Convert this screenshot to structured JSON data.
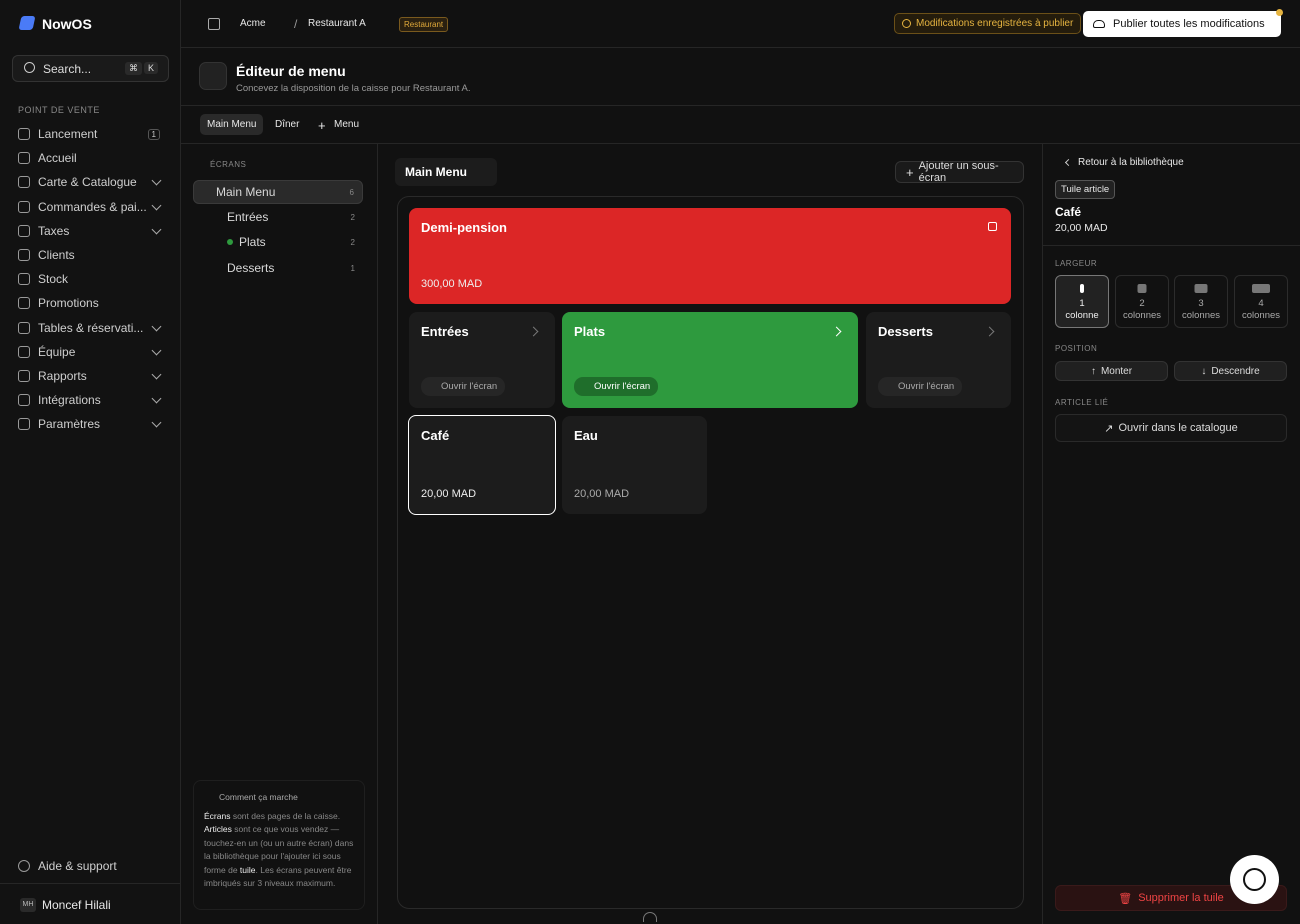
{
  "brand": "NowOS",
  "search": {
    "placeholder": "Search...",
    "keys": [
      "⌘",
      "K"
    ]
  },
  "nav": {
    "section": "POINT DE VENTE",
    "items": [
      {
        "label": "Lancement",
        "badge": "1"
      },
      {
        "label": "Accueil"
      },
      {
        "label": "Carte & Catalogue"
      },
      {
        "label": "Commandes & pai..."
      },
      {
        "label": "Taxes"
      },
      {
        "label": "Clients"
      },
      {
        "label": "Stock"
      },
      {
        "label": "Promotions"
      },
      {
        "label": "Tables & réservati..."
      },
      {
        "label": "Équipe"
      },
      {
        "label": "Rapports"
      },
      {
        "label": "Intégrations"
      },
      {
        "label": "Paramètres"
      }
    ],
    "support": "Aide & support",
    "user": {
      "initials": "MH",
      "name": "Moncef Hilali"
    }
  },
  "topbar": {
    "org": "Acme",
    "location": "Restaurant A",
    "tag": "Restaurant",
    "notice": "Modifications enregistrées à publier",
    "publish": "Publier toutes les modifications"
  },
  "header": {
    "title": "Éditeur de menu",
    "subtitle": "Concevez la disposition de la caisse pour Restaurant A."
  },
  "tabs": {
    "items": [
      "Main Menu",
      "Dîner"
    ],
    "add": "Menu"
  },
  "screens": {
    "heading": "ÉCRANS",
    "items": [
      {
        "label": "Main Menu",
        "count": "6"
      },
      {
        "label": "Entrées",
        "count": "2"
      },
      {
        "label": "Plats",
        "count": "2"
      },
      {
        "label": "Desserts",
        "count": "1"
      }
    ]
  },
  "help": {
    "title": "Comment ça marche",
    "parts": [
      "Écrans",
      " sont des pages de la caisse. ",
      "Articles",
      " sont ce que vous vendez — touchez-en un (ou un autre écran) dans la bibliothèque pour l'ajouter ici sous forme de ",
      "tuile",
      ". Les écrans peuvent être imbriqués sur 3 niveaux maximum."
    ]
  },
  "canvas": {
    "title": "Main Menu",
    "add": "Ajouter un sous-écran",
    "tiles": [
      {
        "label": "Demi-pension",
        "price": "300,00 MAD"
      },
      {
        "label": "Entrées",
        "action": "Ouvrir l'écran"
      },
      {
        "label": "Plats",
        "action": "Ouvrir l'écran"
      },
      {
        "label": "Desserts",
        "action": "Ouvrir l'écran"
      },
      {
        "label": "Café",
        "price": "20,00 MAD"
      },
      {
        "label": "Eau",
        "price": "20,00 MAD"
      }
    ]
  },
  "inspector": {
    "back": "Retour à la bibliothèque",
    "badge": "Tuile article",
    "name": "Café",
    "price": "20,00 MAD",
    "width_label": "LARGEUR",
    "widths": [
      [
        "1",
        "colonne"
      ],
      [
        "2",
        "colonnes"
      ],
      [
        "3",
        "colonnes"
      ],
      [
        "4",
        "colonnes"
      ]
    ],
    "position_label": "POSITION",
    "up": "Monter",
    "down": "Descendre",
    "linked_label": "ARTICLE LIÉ",
    "open_catalog": "Ouvrir dans le catalogue",
    "delete": "Supprimer la tuile"
  }
}
